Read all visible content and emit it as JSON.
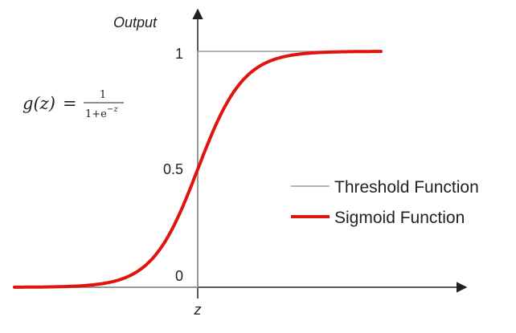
{
  "chart_data": {
    "type": "line",
    "title": "",
    "xlabel": "z",
    "ylabel": "Output",
    "xlim": [
      -8,
      8
    ],
    "ylim": [
      0,
      1
    ],
    "y_ticks": [
      "0",
      "0.5",
      "1"
    ],
    "grid": false,
    "legend_position": "right",
    "formula": {
      "lhs": "g(z)",
      "equals": "=",
      "numerator": "1",
      "denominator_base": "1+e",
      "denominator_exponent": "−z"
    },
    "series": [
      {
        "name": "Threshold Function",
        "color": "#9a9a9a",
        "kind": "step",
        "x": [
          -8,
          0,
          0,
          8
        ],
        "y": [
          0,
          0,
          1,
          1
        ]
      },
      {
        "name": "Sigmoid Function",
        "color": "#e0140f",
        "kind": "sigmoid",
        "x": [
          -8,
          -6,
          -4,
          -3,
          -2,
          -1,
          0,
          1,
          2,
          3,
          4,
          6,
          8
        ],
        "y": [
          0.0003,
          0.0025,
          0.018,
          0.047,
          0.119,
          0.269,
          0.5,
          0.731,
          0.881,
          0.953,
          0.982,
          0.9975,
          0.9997
        ]
      }
    ]
  }
}
